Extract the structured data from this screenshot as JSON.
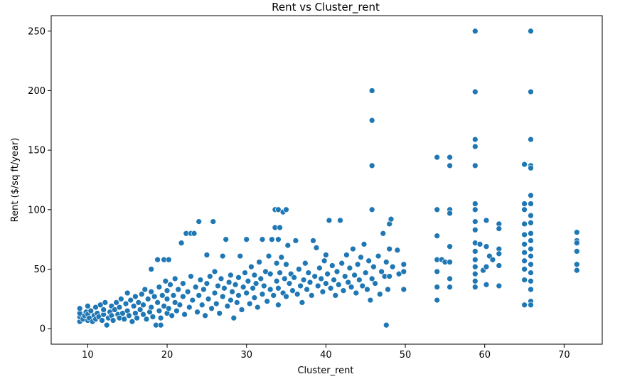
{
  "chart_data": {
    "type": "scatter",
    "title": "Rent vs Cluster_rent",
    "xlabel": "Cluster_rent",
    "ylabel": "Rent ($/sq ft/year)",
    "xlim": [
      5.4,
      74.8
    ],
    "ylim": [
      -13,
      263
    ],
    "xticks": [
      10,
      20,
      30,
      40,
      50,
      60,
      70
    ],
    "yticks": [
      0,
      50,
      100,
      150,
      200,
      250
    ],
    "grid": false,
    "marker_color": "#1f77b4",
    "marker_edge_color": "#ffffff",
    "series": [
      {
        "points": [
          [
            9,
            6
          ],
          [
            9,
            10
          ],
          [
            9,
            13
          ],
          [
            9,
            17
          ],
          [
            9.4,
            8
          ],
          [
            9.6,
            11
          ],
          [
            9.8,
            14
          ],
          [
            10,
            7
          ],
          [
            10,
            12
          ],
          [
            10,
            19
          ],
          [
            10.2,
            9
          ],
          [
            10.4,
            15
          ],
          [
            10.6,
            6
          ],
          [
            10.8,
            11
          ],
          [
            11,
            18
          ],
          [
            11,
            8
          ],
          [
            11.2,
            13
          ],
          [
            11.4,
            10
          ],
          [
            11.6,
            20
          ],
          [
            11.8,
            7
          ],
          [
            12,
            12
          ],
          [
            12,
            16
          ],
          [
            12.2,
            22
          ],
          [
            12.4,
            3
          ],
          [
            12.6,
            9
          ],
          [
            12.8,
            14
          ],
          [
            13,
            11
          ],
          [
            13,
            19
          ],
          [
            13.2,
            7
          ],
          [
            13.4,
            16
          ],
          [
            13.6,
            22
          ],
          [
            13.8,
            12
          ],
          [
            14,
            9
          ],
          [
            14,
            18
          ],
          [
            14.2,
            25
          ],
          [
            14.4,
            13
          ],
          [
            14.6,
            8
          ],
          [
            14.8,
            21
          ],
          [
            15,
            15
          ],
          [
            15,
            30
          ],
          [
            15.2,
            11
          ],
          [
            15.4,
            24
          ],
          [
            15.6,
            6
          ],
          [
            15.8,
            19
          ],
          [
            16,
            13
          ],
          [
            16,
            27
          ],
          [
            16.2,
            9
          ],
          [
            16.4,
            22
          ],
          [
            16.6,
            16
          ],
          [
            16.8,
            29
          ],
          [
            17,
            12
          ],
          [
            17,
            20
          ],
          [
            17.2,
            33
          ],
          [
            17.4,
            8
          ],
          [
            17.6,
            25
          ],
          [
            17.8,
            14
          ],
          [
            18,
            50
          ],
          [
            18,
            18
          ],
          [
            18,
            31
          ],
          [
            18.2,
            10
          ],
          [
            18.4,
            27
          ],
          [
            18.6,
            3
          ],
          [
            18.8,
            58
          ],
          [
            18.8,
            22
          ],
          [
            19,
            15
          ],
          [
            19,
            35
          ],
          [
            19.2,
            9
          ],
          [
            19.2,
            3
          ],
          [
            19.4,
            28
          ],
          [
            19.6,
            58
          ],
          [
            19.6,
            19
          ],
          [
            19.8,
            40
          ],
          [
            20,
            13
          ],
          [
            20,
            25
          ],
          [
            20,
            32
          ],
          [
            20.2,
            58
          ],
          [
            20.2,
            17
          ],
          [
            20.4,
            37
          ],
          [
            20.6,
            11
          ],
          [
            20.8,
            28
          ],
          [
            21,
            22
          ],
          [
            21,
            42
          ],
          [
            21.2,
            15
          ],
          [
            21.4,
            33
          ],
          [
            21.6,
            20
          ],
          [
            21.8,
            72
          ],
          [
            22,
            27
          ],
          [
            22,
            38
          ],
          [
            22.2,
            12
          ],
          [
            22.4,
            80
          ],
          [
            22.6,
            31
          ],
          [
            22.8,
            18
          ],
          [
            23,
            80
          ],
          [
            23,
            44
          ],
          [
            23.2,
            24
          ],
          [
            23.4,
            80
          ],
          [
            23.6,
            35
          ],
          [
            23.8,
            14
          ],
          [
            24,
            90
          ],
          [
            24,
            28
          ],
          [
            24.2,
            41
          ],
          [
            24.4,
            20
          ],
          [
            24.6,
            33
          ],
          [
            24.8,
            11
          ],
          [
            25,
            38
          ],
          [
            25,
            62
          ],
          [
            25.2,
            25
          ],
          [
            25.4,
            44
          ],
          [
            25.6,
            17
          ],
          [
            25.8,
            90
          ],
          [
            26,
            30
          ],
          [
            26,
            48
          ],
          [
            26.2,
            21
          ],
          [
            26.4,
            36
          ],
          [
            26.6,
            13
          ],
          [
            26.8,
            42
          ],
          [
            27,
            61
          ],
          [
            27,
            27
          ],
          [
            27.2,
            34
          ],
          [
            27.4,
            75
          ],
          [
            27.6,
            19
          ],
          [
            27.8,
            39
          ],
          [
            28,
            24
          ],
          [
            28,
            45
          ],
          [
            28.2,
            31
          ],
          [
            28.4,
            9
          ],
          [
            28.6,
            37
          ],
          [
            28.8,
            22
          ],
          [
            29,
            43
          ],
          [
            29,
            28
          ],
          [
            29.2,
            61
          ],
          [
            29.4,
            16
          ],
          [
            29.6,
            35
          ],
          [
            29.8,
            47
          ],
          [
            30,
            75
          ],
          [
            30,
            30
          ],
          [
            30.2,
            40
          ],
          [
            30.4,
            21
          ],
          [
            30.6,
            52
          ],
          [
            30.8,
            34
          ],
          [
            31,
            26
          ],
          [
            31,
            45
          ],
          [
            31.2,
            38
          ],
          [
            31.4,
            18
          ],
          [
            31.6,
            56
          ],
          [
            31.8,
            42
          ],
          [
            32,
            29
          ],
          [
            32,
            75
          ],
          [
            32.2,
            36
          ],
          [
            32.4,
            48
          ],
          [
            32.6,
            23
          ],
          [
            32.8,
            61
          ],
          [
            33,
            33
          ],
          [
            33,
            46
          ],
          [
            33.2,
            75
          ],
          [
            33.4,
            28
          ],
          [
            33.6,
            100
          ],
          [
            33.6,
            85
          ],
          [
            33.8,
            40
          ],
          [
            33.8,
            55
          ],
          [
            34,
            100
          ],
          [
            34,
            75
          ],
          [
            34,
            34
          ],
          [
            34,
            20
          ],
          [
            34.2,
            85
          ],
          [
            34.2,
            47
          ],
          [
            34.4,
            60
          ],
          [
            34.6,
            30
          ],
          [
            34.6,
            98
          ],
          [
            34.8,
            42
          ],
          [
            35,
            100
          ],
          [
            35,
            54
          ],
          [
            35,
            27
          ],
          [
            35.2,
            70
          ],
          [
            35.4,
            38
          ],
          [
            35.6,
            46
          ],
          [
            35.8,
            32
          ],
          [
            36,
            43
          ],
          [
            36.2,
            74
          ],
          [
            36.4,
            29
          ],
          [
            36.6,
            50
          ],
          [
            36.8,
            36
          ],
          [
            37,
            22
          ],
          [
            37.2,
            41
          ],
          [
            37.4,
            55
          ],
          [
            37.6,
            33
          ],
          [
            37.8,
            47
          ],
          [
            38,
            39
          ],
          [
            38.2,
            28
          ],
          [
            38.4,
            74
          ],
          [
            38.6,
            44
          ],
          [
            38.8,
            68
          ],
          [
            39,
            36
          ],
          [
            39.2,
            51
          ],
          [
            39.4,
            42
          ],
          [
            39.6,
            31
          ],
          [
            39.8,
            57
          ],
          [
            40,
            38
          ],
          [
            40,
            62
          ],
          [
            40.2,
            46
          ],
          [
            40.4,
            91
          ],
          [
            40.6,
            34
          ],
          [
            40.8,
            53
          ],
          [
            41,
            41
          ],
          [
            41.2,
            28
          ],
          [
            41.4,
            48
          ],
          [
            41.6,
            37
          ],
          [
            41.8,
            91
          ],
          [
            42,
            55
          ],
          [
            42.2,
            32
          ],
          [
            42.4,
            44
          ],
          [
            42.6,
            62
          ],
          [
            42.8,
            39
          ],
          [
            43,
            51
          ],
          [
            43.2,
            35
          ],
          [
            43.4,
            67
          ],
          [
            43.6,
            45
          ],
          [
            43.8,
            30
          ],
          [
            44,
            54
          ],
          [
            44.2,
            41
          ],
          [
            44.4,
            60
          ],
          [
            44.6,
            36
          ],
          [
            44.8,
            71
          ],
          [
            45,
            47
          ],
          [
            45.2,
            33
          ],
          [
            45.4,
            57
          ],
          [
            45.6,
            24
          ],
          [
            45.8,
            200
          ],
          [
            45.8,
            175
          ],
          [
            45.8,
            137
          ],
          [
            45.8,
            100
          ],
          [
            45.8,
            42
          ],
          [
            46,
            52
          ],
          [
            46.2,
            38
          ],
          [
            46.6,
            61
          ],
          [
            46.8,
            29
          ],
          [
            47,
            48
          ],
          [
            47.2,
            80
          ],
          [
            47.4,
            44
          ],
          [
            47.6,
            3
          ],
          [
            47.6,
            56
          ],
          [
            47.8,
            33
          ],
          [
            48,
            88
          ],
          [
            48,
            67
          ],
          [
            48,
            44
          ],
          [
            48.2,
            92
          ],
          [
            48.4,
            52
          ],
          [
            49,
            66
          ],
          [
            49.2,
            46
          ],
          [
            49.8,
            54
          ],
          [
            49.8,
            33
          ],
          [
            49.8,
            48
          ],
          [
            54,
            144
          ],
          [
            54,
            100
          ],
          [
            54,
            78
          ],
          [
            54,
            58
          ],
          [
            54,
            48
          ],
          [
            54,
            35
          ],
          [
            54,
            24
          ],
          [
            54.6,
            58
          ],
          [
            55,
            56
          ],
          [
            55.6,
            144
          ],
          [
            55.6,
            137
          ],
          [
            55.6,
            100
          ],
          [
            55.6,
            97
          ],
          [
            55.6,
            69
          ],
          [
            55.6,
            56
          ],
          [
            55.6,
            42
          ],
          [
            55.6,
            35
          ],
          [
            58.8,
            250
          ],
          [
            58.8,
            199
          ],
          [
            58.8,
            159
          ],
          [
            58.8,
            153
          ],
          [
            58.8,
            137
          ],
          [
            58.8,
            105
          ],
          [
            58.8,
            100
          ],
          [
            58.8,
            90
          ],
          [
            58.8,
            83
          ],
          [
            58.8,
            72
          ],
          [
            58.8,
            65
          ],
          [
            58.8,
            58
          ],
          [
            58.8,
            52
          ],
          [
            58.8,
            46
          ],
          [
            58.8,
            40
          ],
          [
            58.8,
            35
          ],
          [
            59.4,
            71
          ],
          [
            59.8,
            49
          ],
          [
            60.2,
            91
          ],
          [
            60.2,
            69
          ],
          [
            60.2,
            52
          ],
          [
            60.2,
            37
          ],
          [
            60.6,
            61
          ],
          [
            61,
            58
          ],
          [
            61.8,
            88
          ],
          [
            61.8,
            84
          ],
          [
            61.8,
            67
          ],
          [
            61.8,
            63
          ],
          [
            61.8,
            53
          ],
          [
            61.8,
            36
          ],
          [
            65,
            138
          ],
          [
            65,
            105
          ],
          [
            65,
            100
          ],
          [
            65,
            88
          ],
          [
            65,
            79
          ],
          [
            65,
            71
          ],
          [
            65,
            64
          ],
          [
            65,
            57
          ],
          [
            65,
            50
          ],
          [
            65,
            41
          ],
          [
            65,
            20
          ],
          [
            65.8,
            250
          ],
          [
            65.8,
            199
          ],
          [
            65.8,
            159
          ],
          [
            65.8,
            137
          ],
          [
            65.8,
            135
          ],
          [
            65.8,
            112
          ],
          [
            65.8,
            105
          ],
          [
            65.8,
            95
          ],
          [
            65.8,
            89
          ],
          [
            65.8,
            80
          ],
          [
            65.8,
            74
          ],
          [
            65.8,
            67
          ],
          [
            65.8,
            61
          ],
          [
            65.8,
            54
          ],
          [
            65.8,
            47
          ],
          [
            65.8,
            40
          ],
          [
            65.8,
            33
          ],
          [
            65.8,
            23
          ],
          [
            65.8,
            20
          ],
          [
            71.6,
            81
          ],
          [
            71.6,
            74
          ],
          [
            71.6,
            72
          ],
          [
            71.6,
            65
          ],
          [
            71.6,
            54
          ],
          [
            71.6,
            49
          ]
        ]
      }
    ]
  }
}
